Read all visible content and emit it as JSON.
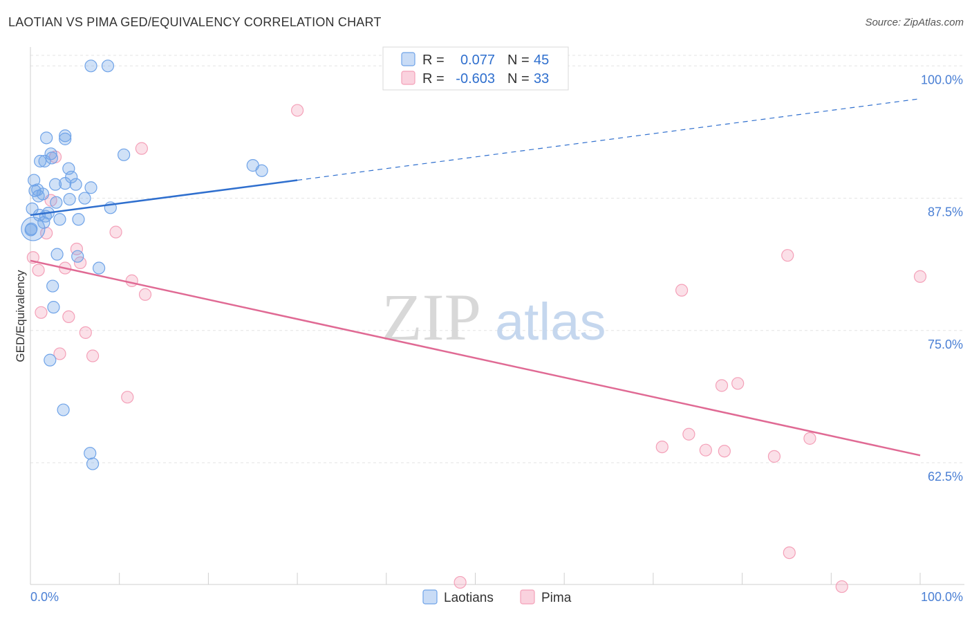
{
  "header": {
    "title": "LAOTIAN VS PIMA GED/EQUIVALENCY CORRELATION CHART",
    "source": "Source: ZipAtlas.com"
  },
  "legend": {
    "r_label": "R =",
    "n_label": "N =",
    "series": [
      {
        "r": "0.077",
        "n": "45"
      },
      {
        "r": "-0.603",
        "n": "33"
      }
    ]
  },
  "watermark": {
    "zip": "ZIP",
    "atlas": "atlas"
  },
  "chart_data": {
    "type": "scatter",
    "title": "LAOTIAN VS PIMA GED/EQUIVALENCY CORRELATION CHART",
    "xlabel": "",
    "ylabel": "GED/Equivalency",
    "xlim": [
      0,
      100
    ],
    "ylim": [
      51,
      101
    ],
    "x_tick_labels": [
      "0.0%",
      "100.0%"
    ],
    "y_ticks": [
      {
        "value": 100,
        "label": "100.0%"
      },
      {
        "value": 87.5,
        "label": "87.5%"
      },
      {
        "value": 75,
        "label": "75.0%"
      },
      {
        "value": 62.5,
        "label": "62.5%"
      }
    ],
    "grid": true,
    "legend_position": "bottom",
    "series": [
      {
        "name": "Laotians",
        "color": "#6fa3e8",
        "line_color": "#2f6fce",
        "trend": {
          "x0": 0,
          "y0": 85.9,
          "x1": 30,
          "y1": 89.2,
          "x_end": 100,
          "y_end": 96.9,
          "solid_until": 30
        },
        "points": [
          [
            6.8,
            100
          ],
          [
            8.7,
            100
          ],
          [
            1.8,
            93.2
          ],
          [
            3.9,
            93.4
          ],
          [
            3.9,
            93.1
          ],
          [
            2.3,
            91.7
          ],
          [
            2.4,
            91.3
          ],
          [
            10.5,
            91.6
          ],
          [
            1.1,
            91.0
          ],
          [
            1.6,
            91.0
          ],
          [
            25,
            90.6
          ],
          [
            26,
            90.1
          ],
          [
            4.3,
            90.3
          ],
          [
            4.6,
            89.5
          ],
          [
            0.4,
            89.2
          ],
          [
            3.9,
            88.9
          ],
          [
            5.1,
            88.8
          ],
          [
            2.8,
            88.8
          ],
          [
            6.8,
            88.5
          ],
          [
            0.8,
            88.3
          ],
          [
            0.5,
            88.2
          ],
          [
            1.4,
            87.9
          ],
          [
            0.9,
            87.7
          ],
          [
            4.4,
            87.4
          ],
          [
            6.1,
            87.5
          ],
          [
            2.9,
            87.1
          ],
          [
            9.0,
            86.6
          ],
          [
            0.2,
            86.5
          ],
          [
            2.0,
            86.1
          ],
          [
            1.0,
            85.9
          ],
          [
            1.7,
            85.8
          ],
          [
            3.3,
            85.5
          ],
          [
            5.4,
            85.5
          ],
          [
            1.5,
            85.2
          ],
          [
            0.1,
            84.6
          ],
          [
            3.0,
            82.2
          ],
          [
            5.3,
            82.0
          ],
          [
            7.7,
            80.9
          ],
          [
            2.5,
            79.2
          ],
          [
            2.6,
            77.2
          ],
          [
            2.2,
            72.2
          ],
          [
            3.7,
            67.5
          ],
          [
            6.7,
            63.4
          ],
          [
            7.0,
            62.4
          ],
          [
            0.05,
            84.5
          ]
        ]
      },
      {
        "name": "Pima",
        "color": "#f4a0b8",
        "line_color": "#e06a94",
        "trend": {
          "x0": 0,
          "y0": 81.6,
          "x1": 100,
          "y1": 63.2
        },
        "points": [
          [
            30,
            95.8
          ],
          [
            12.5,
            92.2
          ],
          [
            2.8,
            91.4
          ],
          [
            2.3,
            87.3
          ],
          [
            1.8,
            84.2
          ],
          [
            9.6,
            84.3
          ],
          [
            5.2,
            82.7
          ],
          [
            0.3,
            81.9
          ],
          [
            5.6,
            81.4
          ],
          [
            3.9,
            80.9
          ],
          [
            0.9,
            80.7
          ],
          [
            11.4,
            79.7
          ],
          [
            12.9,
            78.4
          ],
          [
            1.2,
            76.7
          ],
          [
            4.3,
            76.3
          ],
          [
            6.2,
            74.8
          ],
          [
            3.3,
            72.8
          ],
          [
            7.0,
            72.6
          ],
          [
            10.9,
            68.7
          ],
          [
            85.1,
            82.1
          ],
          [
            100,
            80.1
          ],
          [
            73.2,
            78.8
          ],
          [
            77.7,
            69.8
          ],
          [
            79.5,
            70.0
          ],
          [
            71.0,
            64.0
          ],
          [
            74.0,
            65.2
          ],
          [
            75.9,
            63.7
          ],
          [
            78.0,
            63.6
          ],
          [
            83.6,
            63.1
          ],
          [
            87.6,
            64.8
          ],
          [
            85.3,
            54.0
          ],
          [
            48.3,
            51.2
          ],
          [
            91.2,
            50.8
          ]
        ]
      }
    ]
  }
}
